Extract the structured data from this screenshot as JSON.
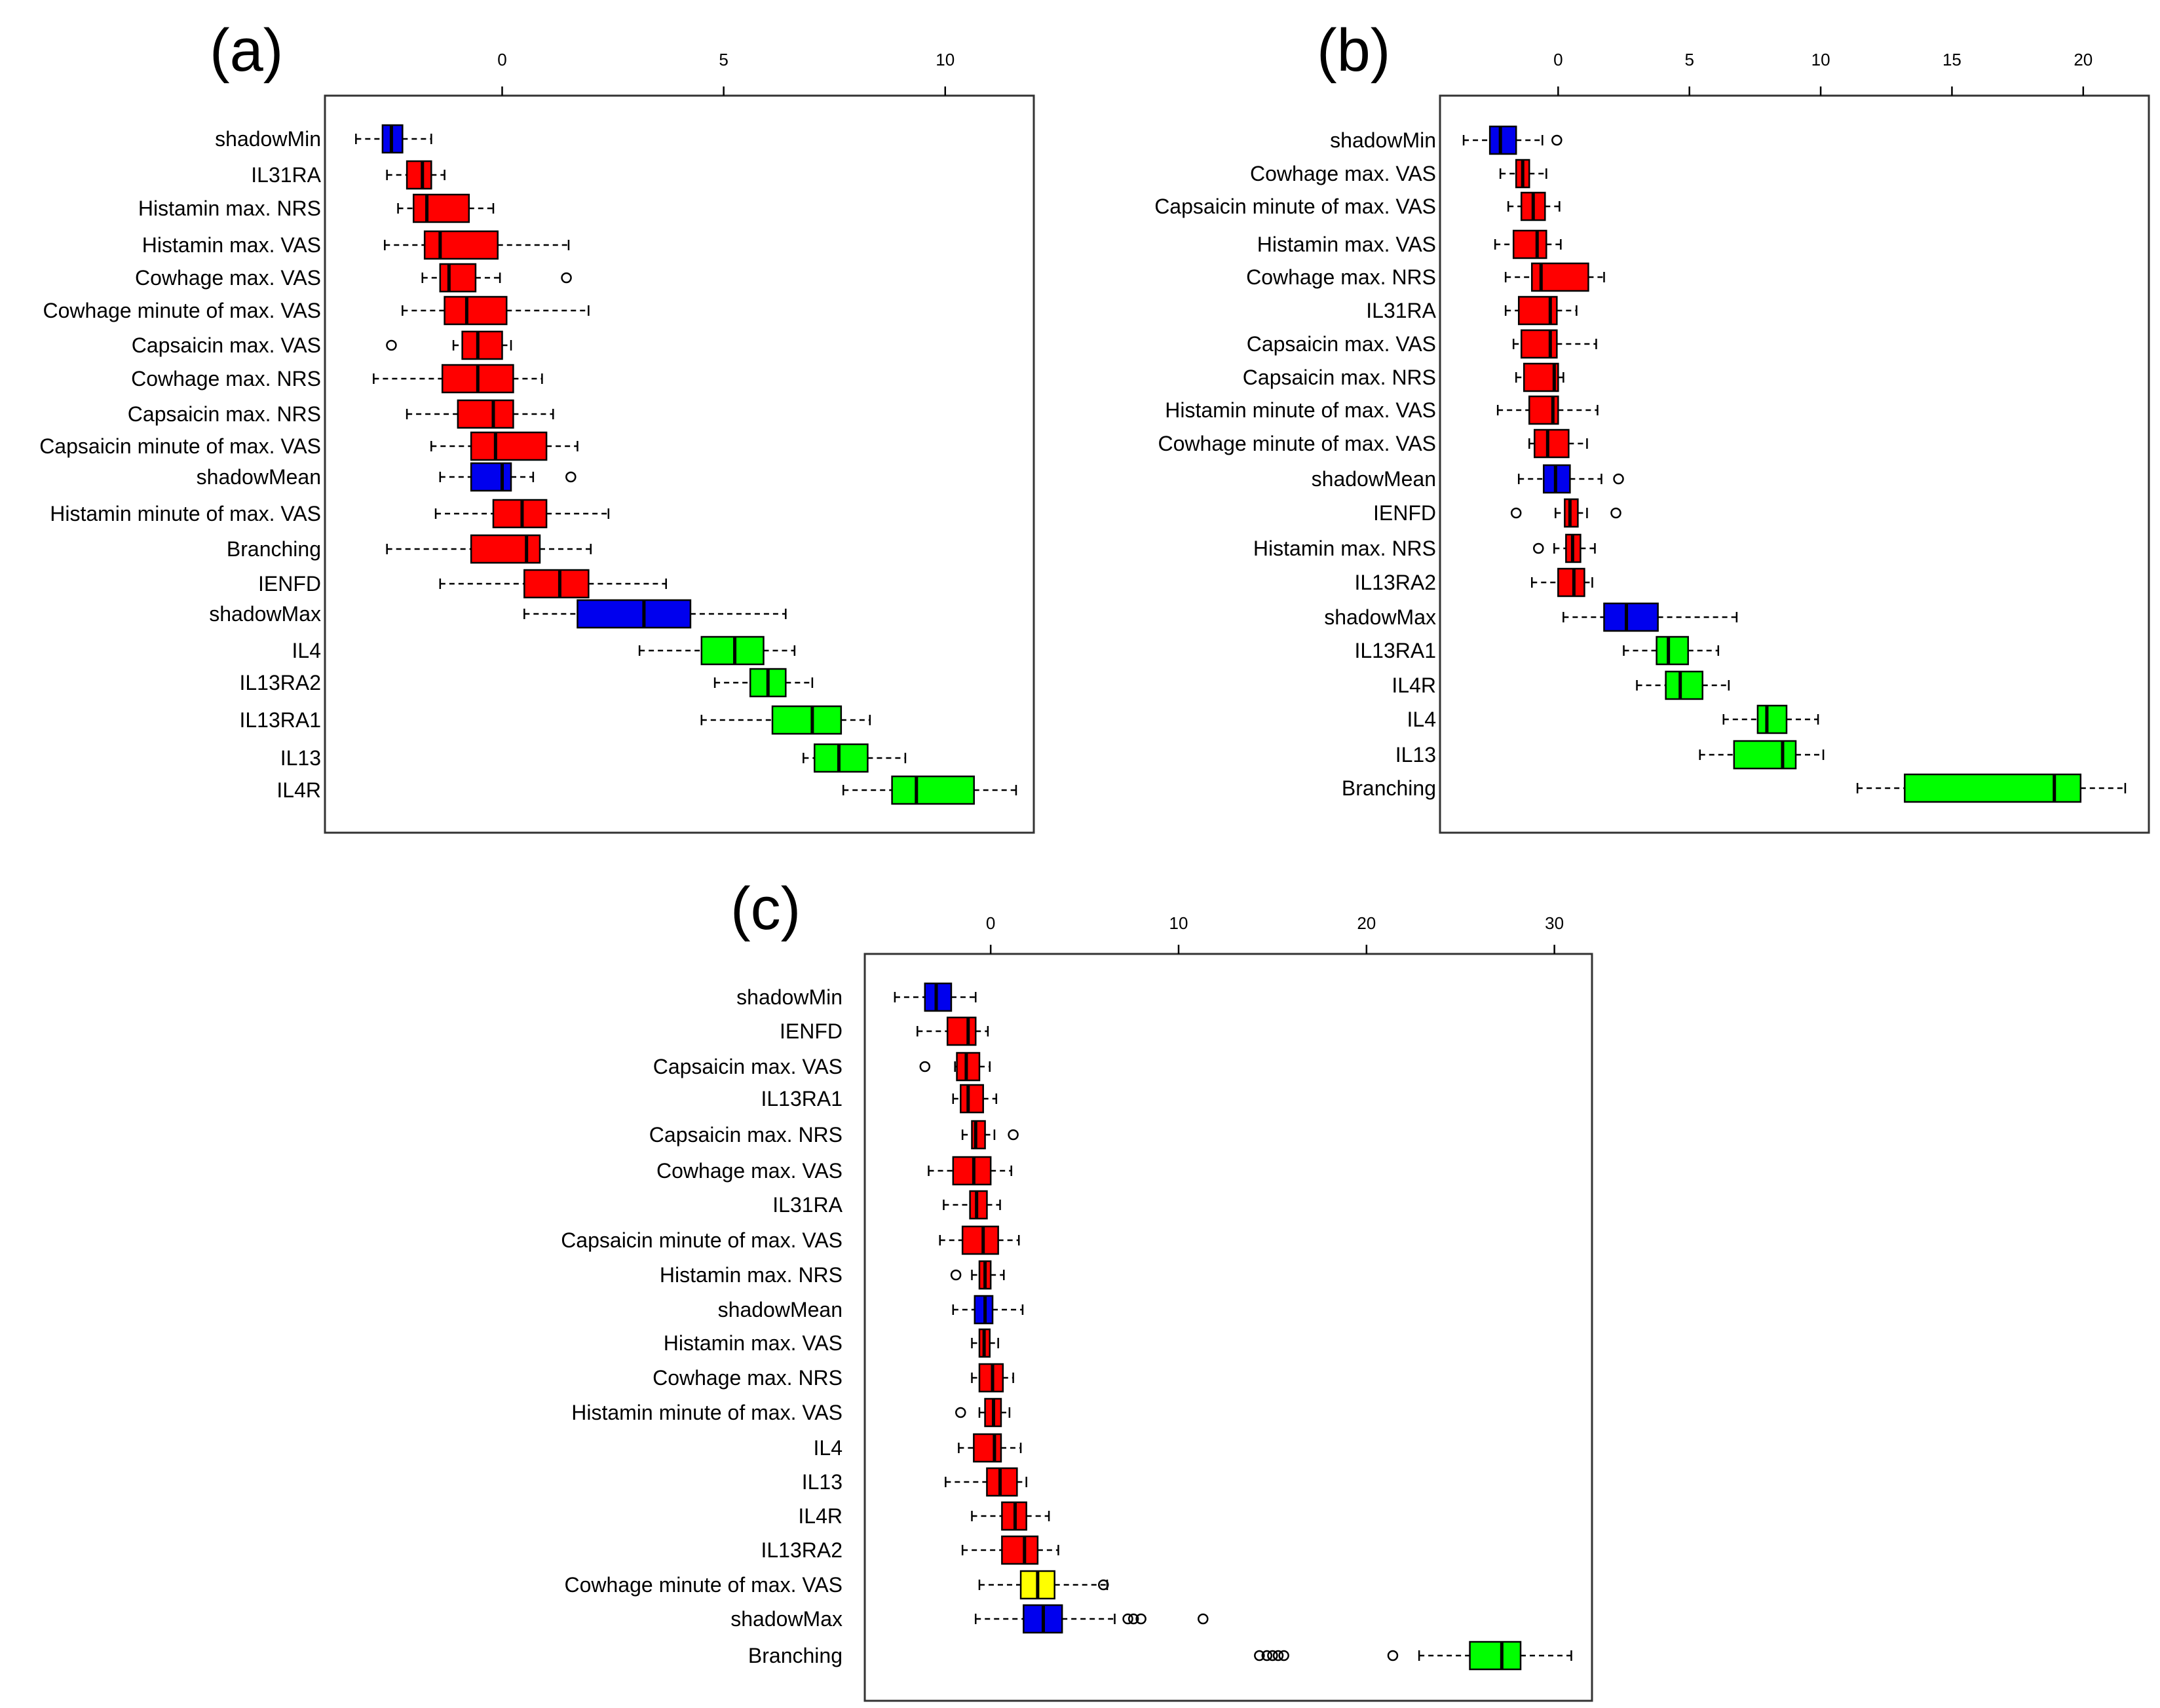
{
  "colors": {
    "red": "#FF0000",
    "green": "#00FF00",
    "blue": "#0000EE",
    "yellow": "#FFFF00"
  },
  "chart_data": [
    {
      "type": "boxplot",
      "panel_label": "(a)",
      "orientation": "horizontal",
      "xlim": [
        -4,
        12
      ],
      "xticks": [
        0,
        5,
        10
      ],
      "xtick_labels": [
        "0",
        "5",
        "10"
      ],
      "series": [
        {
          "label": "shadowMin",
          "color": "blue",
          "whisker_low": -3.3,
          "q1": -2.7,
          "median": -2.5,
          "q3": -2.25,
          "whisker_high": -1.6,
          "outliers": []
        },
        {
          "label": "IL31RA",
          "color": "red",
          "whisker_low": -2.6,
          "q1": -2.15,
          "median": -1.8,
          "q3": -1.6,
          "whisker_high": -1.3,
          "outliers": []
        },
        {
          "label": "Histamin max. NRS",
          "color": "red",
          "whisker_low": -2.35,
          "q1": -2.0,
          "median": -1.7,
          "q3": -0.75,
          "whisker_high": -0.2,
          "outliers": []
        },
        {
          "label": "Histamin max. VAS",
          "color": "red",
          "whisker_low": -2.65,
          "q1": -1.75,
          "median": -1.4,
          "q3": -0.1,
          "whisker_high": 1.5,
          "outliers": []
        },
        {
          "label": "Cowhage max. VAS",
          "color": "red",
          "whisker_low": -1.8,
          "q1": -1.4,
          "median": -1.2,
          "q3": -0.6,
          "whisker_high": -0.05,
          "outliers": [
            1.45
          ]
        },
        {
          "label": "Cowhage minute of max. VAS",
          "color": "red",
          "whisker_low": -2.25,
          "q1": -1.3,
          "median": -0.8,
          "q3": 0.1,
          "whisker_high": 1.95,
          "outliers": []
        },
        {
          "label": "Capsaicin max. VAS",
          "color": "red",
          "whisker_low": -1.1,
          "q1": -0.9,
          "median": -0.55,
          "q3": 0.0,
          "whisker_high": 0.2,
          "outliers": [
            -2.5
          ]
        },
        {
          "label": "Cowhage max. NRS",
          "color": "red",
          "whisker_low": -2.9,
          "q1": -1.35,
          "median": -0.55,
          "q3": 0.25,
          "whisker_high": 0.9,
          "outliers": []
        },
        {
          "label": "Capsaicin max. NRS",
          "color": "red",
          "whisker_low": -2.15,
          "q1": -1.0,
          "median": -0.2,
          "q3": 0.25,
          "whisker_high": 1.15,
          "outliers": []
        },
        {
          "label": "Capsaicin minute of max. VAS",
          "color": "red",
          "whisker_low": -1.6,
          "q1": -0.7,
          "median": -0.15,
          "q3": 1.0,
          "whisker_high": 1.7,
          "outliers": []
        },
        {
          "label": "shadowMean",
          "color": "blue",
          "whisker_low": -1.4,
          "q1": -0.7,
          "median": 0.0,
          "q3": 0.2,
          "whisker_high": 0.7,
          "outliers": [
            1.55
          ]
        },
        {
          "label": "Histamin minute of max. VAS",
          "color": "red",
          "whisker_low": -1.5,
          "q1": -0.2,
          "median": 0.45,
          "q3": 1.0,
          "whisker_high": 2.4,
          "outliers": []
        },
        {
          "label": "Branching",
          "color": "red",
          "whisker_low": -2.6,
          "q1": -0.7,
          "median": 0.55,
          "q3": 0.85,
          "whisker_high": 2.0,
          "outliers": []
        },
        {
          "label": "IENFD",
          "color": "red",
          "whisker_low": -1.4,
          "q1": 0.5,
          "median": 1.3,
          "q3": 1.95,
          "whisker_high": 3.7,
          "outliers": []
        },
        {
          "label": "shadowMax",
          "color": "blue",
          "whisker_low": 0.5,
          "q1": 1.7,
          "median": 3.2,
          "q3": 4.25,
          "whisker_high": 6.4,
          "outliers": []
        },
        {
          "label": "IL4",
          "color": "green",
          "whisker_low": 3.1,
          "q1": 4.5,
          "median": 5.25,
          "q3": 5.9,
          "whisker_high": 6.6,
          "outliers": []
        },
        {
          "label": "IL13RA2",
          "color": "green",
          "whisker_low": 4.8,
          "q1": 5.6,
          "median": 6.0,
          "q3": 6.4,
          "whisker_high": 7.0,
          "outliers": []
        },
        {
          "label": "IL13RA1",
          "color": "green",
          "whisker_low": 4.5,
          "q1": 6.1,
          "median": 7.0,
          "q3": 7.65,
          "whisker_high": 8.3,
          "outliers": []
        },
        {
          "label": "IL13",
          "color": "green",
          "whisker_low": 6.8,
          "q1": 7.05,
          "median": 7.6,
          "q3": 8.25,
          "whisker_high": 9.1,
          "outliers": []
        },
        {
          "label": "IL4R",
          "color": "green",
          "whisker_low": 7.7,
          "q1": 8.8,
          "median": 9.35,
          "q3": 10.65,
          "whisker_high": 11.6,
          "outliers": []
        }
      ]
    },
    {
      "type": "boxplot",
      "panel_label": "(b)",
      "orientation": "horizontal",
      "xlim": [
        -4.5,
        22.5
      ],
      "xticks": [
        0,
        5,
        10,
        15,
        20
      ],
      "xtick_labels": [
        "0",
        "5",
        "10",
        "15",
        "20"
      ],
      "series": [
        {
          "label": "shadowMin",
          "color": "blue",
          "whisker_low": -3.6,
          "q1": -2.6,
          "median": -2.2,
          "q3": -1.6,
          "whisker_high": -0.6,
          "outliers": [
            -0.05
          ]
        },
        {
          "label": "Cowhage max. VAS",
          "color": "red",
          "whisker_low": -2.2,
          "q1": -1.6,
          "median": -1.35,
          "q3": -1.1,
          "whisker_high": -0.45,
          "outliers": []
        },
        {
          "label": "Capsaicin minute of max. VAS",
          "color": "red",
          "whisker_low": -1.9,
          "q1": -1.4,
          "median": -0.95,
          "q3": -0.5,
          "whisker_high": 0.05,
          "outliers": []
        },
        {
          "label": "Histamin max. VAS",
          "color": "red",
          "whisker_low": -2.4,
          "q1": -1.7,
          "median": -0.8,
          "q3": -0.45,
          "whisker_high": 0.1,
          "outliers": []
        },
        {
          "label": "Cowhage max. NRS",
          "color": "red",
          "whisker_low": -2.0,
          "q1": -1.0,
          "median": -0.65,
          "q3": 1.15,
          "whisker_high": 1.75,
          "outliers": []
        },
        {
          "label": "IL31RA",
          "color": "red",
          "whisker_low": -2.0,
          "q1": -1.5,
          "median": -0.3,
          "q3": -0.05,
          "whisker_high": 0.7,
          "outliers": []
        },
        {
          "label": "Capsaicin max. VAS",
          "color": "red",
          "whisker_low": -1.7,
          "q1": -1.4,
          "median": -0.3,
          "q3": -0.05,
          "whisker_high": 1.45,
          "outliers": []
        },
        {
          "label": "Capsaicin max. NRS",
          "color": "red",
          "whisker_low": -1.6,
          "q1": -1.3,
          "median": -0.15,
          "q3": 0.0,
          "whisker_high": 0.2,
          "outliers": []
        },
        {
          "label": "Histamin minute of max. VAS",
          "color": "red",
          "whisker_low": -2.3,
          "q1": -1.1,
          "median": -0.2,
          "q3": 0.0,
          "whisker_high": 1.5,
          "outliers": []
        },
        {
          "label": "Cowhage minute of max. VAS",
          "color": "red",
          "whisker_low": -1.1,
          "q1": -0.9,
          "median": -0.4,
          "q3": 0.4,
          "whisker_high": 1.1,
          "outliers": []
        },
        {
          "label": "shadowMean",
          "color": "blue",
          "whisker_low": -1.5,
          "q1": -0.55,
          "median": -0.1,
          "q3": 0.45,
          "whisker_high": 1.65,
          "outliers": [
            2.3
          ]
        },
        {
          "label": "IENFD",
          "color": "red",
          "whisker_low": -0.1,
          "q1": 0.25,
          "median": 0.45,
          "q3": 0.75,
          "whisker_high": 1.1,
          "outliers": [
            -1.6,
            2.2
          ]
        },
        {
          "label": "Histamin max. NRS",
          "color": "red",
          "whisker_low": -0.15,
          "q1": 0.3,
          "median": 0.55,
          "q3": 0.85,
          "whisker_high": 1.4,
          "outliers": [
            -0.75
          ]
        },
        {
          "label": "IL13RA2",
          "color": "red",
          "whisker_low": -1.0,
          "q1": 0.0,
          "median": 0.6,
          "q3": 1.0,
          "whisker_high": 1.3,
          "outliers": []
        },
        {
          "label": "shadowMax",
          "color": "blue",
          "whisker_low": 0.2,
          "q1": 1.75,
          "median": 2.6,
          "q3": 3.8,
          "whisker_high": 6.8,
          "outliers": []
        },
        {
          "label": "IL13RA1",
          "color": "green",
          "whisker_low": 2.5,
          "q1": 3.75,
          "median": 4.2,
          "q3": 4.95,
          "whisker_high": 6.1,
          "outliers": []
        },
        {
          "label": "IL4R",
          "color": "green",
          "whisker_low": 3.0,
          "q1": 4.1,
          "median": 4.65,
          "q3": 5.5,
          "whisker_high": 6.5,
          "outliers": []
        },
        {
          "label": "IL4",
          "color": "green",
          "whisker_low": 6.3,
          "q1": 7.6,
          "median": 7.95,
          "q3": 8.7,
          "whisker_high": 9.9,
          "outliers": []
        },
        {
          "label": "IL13",
          "color": "green",
          "whisker_low": 5.4,
          "q1": 6.7,
          "median": 8.55,
          "q3": 9.05,
          "whisker_high": 10.1,
          "outliers": []
        },
        {
          "label": "Branching",
          "color": "green",
          "whisker_low": 11.4,
          "q1": 13.2,
          "median": 18.9,
          "q3": 19.9,
          "whisker_high": 21.6,
          "outliers": []
        }
      ]
    },
    {
      "type": "boxplot",
      "panel_label": "(c)",
      "orientation": "horizontal",
      "xlim": [
        -6.7,
        32
      ],
      "xticks": [
        0,
        10,
        20,
        30
      ],
      "xtick_labels": [
        "0",
        "10",
        "20",
        "30"
      ],
      "series": [
        {
          "label": "shadowMin",
          "color": "blue",
          "whisker_low": -5.1,
          "q1": -3.5,
          "median": -2.9,
          "q3": -2.1,
          "whisker_high": -0.8,
          "outliers": []
        },
        {
          "label": "IENFD",
          "color": "red",
          "whisker_low": -3.9,
          "q1": -2.3,
          "median": -1.2,
          "q3": -0.8,
          "whisker_high": -0.15,
          "outliers": []
        },
        {
          "label": "Capsaicin max. VAS",
          "color": "red",
          "whisker_low": -1.9,
          "q1": -1.8,
          "median": -1.3,
          "q3": -0.6,
          "whisker_high": -0.05,
          "outliers": [
            -3.5
          ]
        },
        {
          "label": "IL13RA1",
          "color": "red",
          "whisker_low": -2.0,
          "q1": -1.6,
          "median": -1.2,
          "q3": -0.4,
          "whisker_high": 0.3,
          "outliers": []
        },
        {
          "label": "Capsaicin max. NRS",
          "color": "red",
          "whisker_low": -1.5,
          "q1": -1.0,
          "median": -0.8,
          "q3": -0.3,
          "whisker_high": 0.2,
          "outliers": [
            1.2
          ]
        },
        {
          "label": "Cowhage max. VAS",
          "color": "red",
          "whisker_low": -3.3,
          "q1": -2.0,
          "median": -0.9,
          "q3": 0.0,
          "whisker_high": 1.1,
          "outliers": []
        },
        {
          "label": "IL31RA",
          "color": "red",
          "whisker_low": -2.5,
          "q1": -1.1,
          "median": -0.75,
          "q3": -0.2,
          "whisker_high": 0.5,
          "outliers": []
        },
        {
          "label": "Capsaicin minute of max. VAS",
          "color": "red",
          "whisker_low": -2.7,
          "q1": -1.5,
          "median": -0.4,
          "q3": 0.4,
          "whisker_high": 1.5,
          "outliers": []
        },
        {
          "label": "Histamin max. NRS",
          "color": "red",
          "whisker_low": -1.0,
          "q1": -0.6,
          "median": -0.3,
          "q3": 0.0,
          "whisker_high": 0.7,
          "outliers": [
            -1.85
          ]
        },
        {
          "label": "shadowMean",
          "color": "blue",
          "whisker_low": -2.0,
          "q1": -0.85,
          "median": -0.3,
          "q3": 0.1,
          "whisker_high": 1.7,
          "outliers": []
        },
        {
          "label": "Histamin max. VAS",
          "color": "red",
          "whisker_low": -1.0,
          "q1": -0.6,
          "median": -0.35,
          "q3": -0.05,
          "whisker_high": 0.4,
          "outliers": []
        },
        {
          "label": "Cowhage max. NRS",
          "color": "red",
          "whisker_low": -1.0,
          "q1": -0.6,
          "median": 0.1,
          "q3": 0.65,
          "whisker_high": 1.2,
          "outliers": []
        },
        {
          "label": "Histamin minute of max. VAS",
          "color": "red",
          "whisker_low": -0.6,
          "q1": -0.3,
          "median": 0.15,
          "q3": 0.55,
          "whisker_high": 1.0,
          "outliers": [
            -1.6
          ]
        },
        {
          "label": "IL4",
          "color": "red",
          "whisker_low": -1.7,
          "q1": -0.9,
          "median": 0.2,
          "q3": 0.55,
          "whisker_high": 1.6,
          "outliers": []
        },
        {
          "label": "IL13",
          "color": "red",
          "whisker_low": -2.4,
          "q1": -0.2,
          "median": 0.5,
          "q3": 1.4,
          "whisker_high": 1.9,
          "outliers": []
        },
        {
          "label": "IL4R",
          "color": "red",
          "whisker_low": -1.0,
          "q1": 0.6,
          "median": 1.3,
          "q3": 1.9,
          "whisker_high": 3.1,
          "outliers": []
        },
        {
          "label": "IL13RA2",
          "color": "red",
          "whisker_low": -1.5,
          "q1": 0.6,
          "median": 1.8,
          "q3": 2.5,
          "whisker_high": 3.6,
          "outliers": []
        },
        {
          "label": "Cowhage minute of max. VAS",
          "color": "yellow",
          "whisker_low": -0.6,
          "q1": 1.6,
          "median": 2.5,
          "q3": 3.4,
          "whisker_high": 6.2,
          "outliers": [
            6.0
          ]
        },
        {
          "label": "shadowMax",
          "color": "blue",
          "whisker_low": -0.8,
          "q1": 1.75,
          "median": 2.8,
          "q3": 3.8,
          "whisker_high": 6.6,
          "outliers": [
            7.3,
            7.6,
            8.0,
            11.3
          ]
        },
        {
          "label": "Branching",
          "color": "green",
          "whisker_low": 22.8,
          "q1": 25.5,
          "median": 27.2,
          "q3": 28.2,
          "whisker_high": 30.9,
          "outliers": [
            14.3,
            14.7,
            15.0,
            15.3,
            15.6,
            21.4
          ]
        }
      ]
    }
  ]
}
